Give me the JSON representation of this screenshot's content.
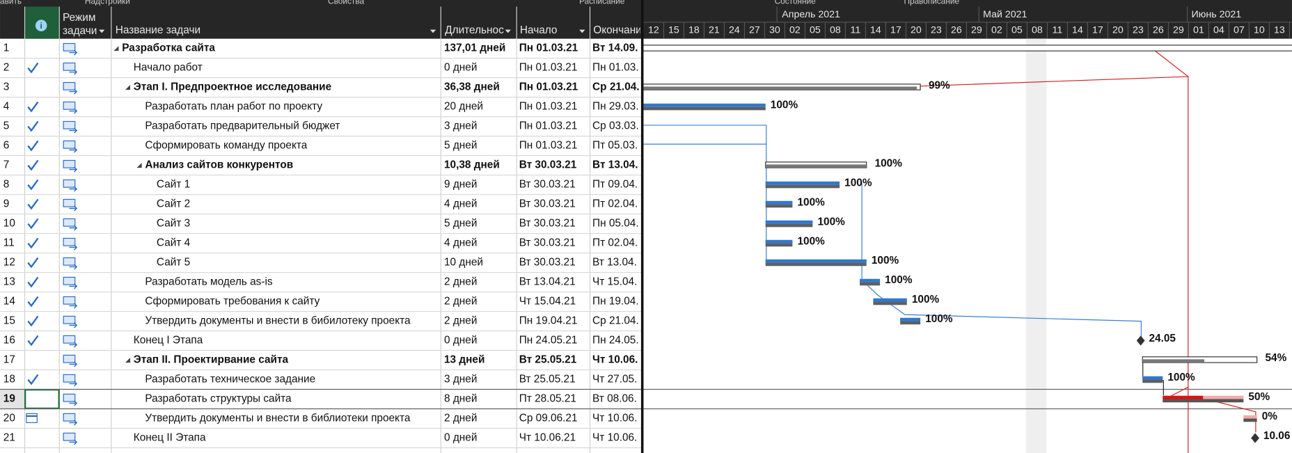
{
  "ribbon": [
    "авить",
    "Надстройки",
    "Свойства",
    "Расписание",
    "Состояние",
    "Правописание"
  ],
  "columns": {
    "mode": [
      "Режим",
      "задачи"
    ],
    "name": "Название задачи",
    "duration": "Длительнос",
    "start": "Начало",
    "finish": "Окончани"
  },
  "timescale": {
    "months": [
      "Апрель 2021",
      "Май 2021",
      "Июнь 2021"
    ],
    "days": [
      "12",
      "15",
      "18",
      "21",
      "24",
      "27",
      "30",
      "02",
      "05",
      "08",
      "11",
      "14",
      "17",
      "20",
      "23",
      "26",
      "29",
      "02",
      "05",
      "08",
      "11",
      "14",
      "17",
      "20",
      "23",
      "26",
      "29",
      "01",
      "04",
      "07",
      "10",
      "13"
    ]
  },
  "rows": [
    {
      "id": "1",
      "name": "Разработка сайта",
      "level": 0,
      "summary": true,
      "duration": "137,01 дней",
      "start": "Пн 01.03.21",
      "finish": "Вт 14.09.",
      "indicator": null
    },
    {
      "id": "2",
      "name": "Начало работ",
      "level": 1,
      "duration": "0 дней",
      "start": "Пн 01.03.21",
      "finish": "Пн 01.03.",
      "indicator": "check"
    },
    {
      "id": "3",
      "name": "Этап I. Предпроектное исследование",
      "level": 1,
      "summary": true,
      "duration": "36,38 дней",
      "start": "Пн 01.03.21",
      "finish": "Ср 21.04.",
      "indicator": null,
      "bar_label": "99%"
    },
    {
      "id": "4",
      "name": "Разработать план работ по проекту",
      "level": 2,
      "duration": "20 дней",
      "start": "Пн 01.03.21",
      "finish": "Пн 29.03.",
      "indicator": "check",
      "bar_label": "100%"
    },
    {
      "id": "5",
      "name": "Разработать предварительный бюджет",
      "level": 2,
      "duration": "3 дней",
      "start": "Пн 01.03.21",
      "finish": "Ср 03.03.",
      "indicator": "check"
    },
    {
      "id": "6",
      "name": "Сформировать команду проекта",
      "level": 2,
      "duration": "5 дней",
      "start": "Пн 01.03.21",
      "finish": "Пт 05.03.",
      "indicator": "check"
    },
    {
      "id": "7",
      "name": "Анализ сайтов конкурентов",
      "level": 2,
      "summary": true,
      "duration": "10,38 дней",
      "start": "Вт 30.03.21",
      "finish": "Вт 13.04.",
      "indicator": "check",
      "bar_label": "100%"
    },
    {
      "id": "8",
      "name": "Сайт 1",
      "level": 3,
      "duration": "9 дней",
      "start": "Вт 30.03.21",
      "finish": "Пт 09.04.",
      "indicator": "check",
      "bar_label": "100%"
    },
    {
      "id": "9",
      "name": "Сайт 2",
      "level": 3,
      "duration": "4 дней",
      "start": "Вт 30.03.21",
      "finish": "Пт 02.04.",
      "indicator": "check",
      "bar_label": "100%"
    },
    {
      "id": "10",
      "name": "Сайт 3",
      "level": 3,
      "duration": "5 дней",
      "start": "Вт 30.03.21",
      "finish": "Пн 05.04.",
      "indicator": "check",
      "bar_label": "100%"
    },
    {
      "id": "11",
      "name": "Сайт 4",
      "level": 3,
      "duration": "4 дней",
      "start": "Вт 30.03.21",
      "finish": "Пт 02.04.",
      "indicator": "check",
      "bar_label": "100%"
    },
    {
      "id": "12",
      "name": "Сайт 5",
      "level": 3,
      "duration": "10 дней",
      "start": "Вт 30.03.21",
      "finish": "Вт 13.04.",
      "indicator": "check",
      "bar_label": "100%"
    },
    {
      "id": "13",
      "name": "Разработать модель as-is",
      "level": 2,
      "duration": "2 дней",
      "start": "Вт 13.04.21",
      "finish": "Чт 15.04.",
      "indicator": "check",
      "bar_label": "100%"
    },
    {
      "id": "14",
      "name": "Сформировать требования к сайту",
      "level": 2,
      "duration": "2 дней",
      "start": "Чт 15.04.21",
      "finish": "Пн 19.04.",
      "indicator": "check",
      "bar_label": "100%"
    },
    {
      "id": "15",
      "name": "Утвердить документы и внести в бибилотеку проекта",
      "level": 2,
      "duration": "2 дней",
      "start": "Пн 19.04.21",
      "finish": "Ср 21.04.",
      "indicator": "check",
      "bar_label": "100%"
    },
    {
      "id": "16",
      "name": "Конец I Этапа",
      "level": 1,
      "duration": "0 дней",
      "start": "Пн 24.05.21",
      "finish": "Пн 24.05.",
      "indicator": "check",
      "bar_label": "24.05"
    },
    {
      "id": "17",
      "name": "Этап II. Проектирвание сайта",
      "level": 1,
      "summary": true,
      "duration": "13 дней",
      "start": "Вт 25.05.21",
      "finish": "Чт 10.06.",
      "indicator": null,
      "bar_label": "54%"
    },
    {
      "id": "18",
      "name": "Разработать техническое задание",
      "level": 2,
      "duration": "3 дней",
      "start": "Вт 25.05.21",
      "finish": "Чт 27.05.",
      "indicator": "check",
      "bar_label": "100%"
    },
    {
      "id": "19",
      "name": "Разработать структуры сайта",
      "level": 2,
      "duration": "8 дней",
      "start": "Пт 28.05.21",
      "finish": "Вт 08.06.",
      "indicator": null,
      "bar_label": "50%",
      "critical": true,
      "selected": true
    },
    {
      "id": "20",
      "name": "Утвердить документы и внести в библиотеки проекта",
      "level": 2,
      "duration": "2 дней",
      "start": "Ср 09.06.21",
      "finish": "Чт 10.06.",
      "indicator": "calendar",
      "bar_label": "0%",
      "critical": true
    },
    {
      "id": "21",
      "name": "Конец II Этапа",
      "level": 1,
      "duration": "0 дней",
      "start": "Чт 10.06.21",
      "finish": "Чт 10.06.",
      "indicator": null,
      "bar_label": "10.06"
    }
  ]
}
